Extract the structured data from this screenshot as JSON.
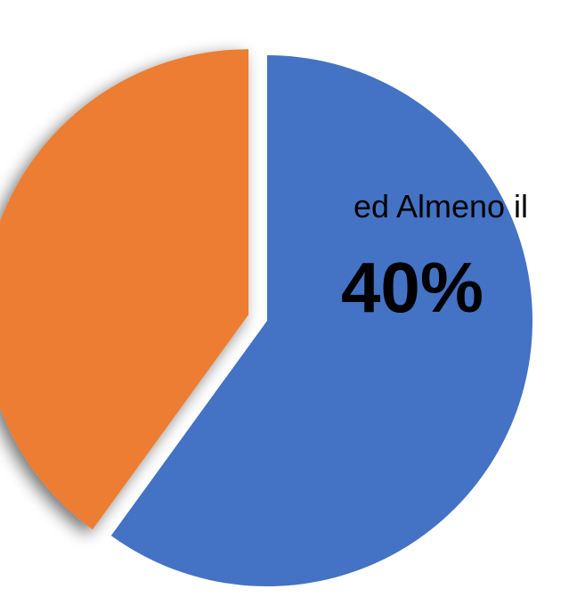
{
  "chart_data": {
    "type": "pie",
    "slices": [
      {
        "value": 60,
        "color": "#4472C4",
        "exploded": false,
        "label": "",
        "value_label": ""
      },
      {
        "value": 40,
        "color": "#ED7D31",
        "exploded": true,
        "label": "ed Almeno il",
        "value_label": "40%"
      }
    ],
    "start_angle_deg": 0,
    "direction": "clockwise",
    "legend": "none"
  }
}
